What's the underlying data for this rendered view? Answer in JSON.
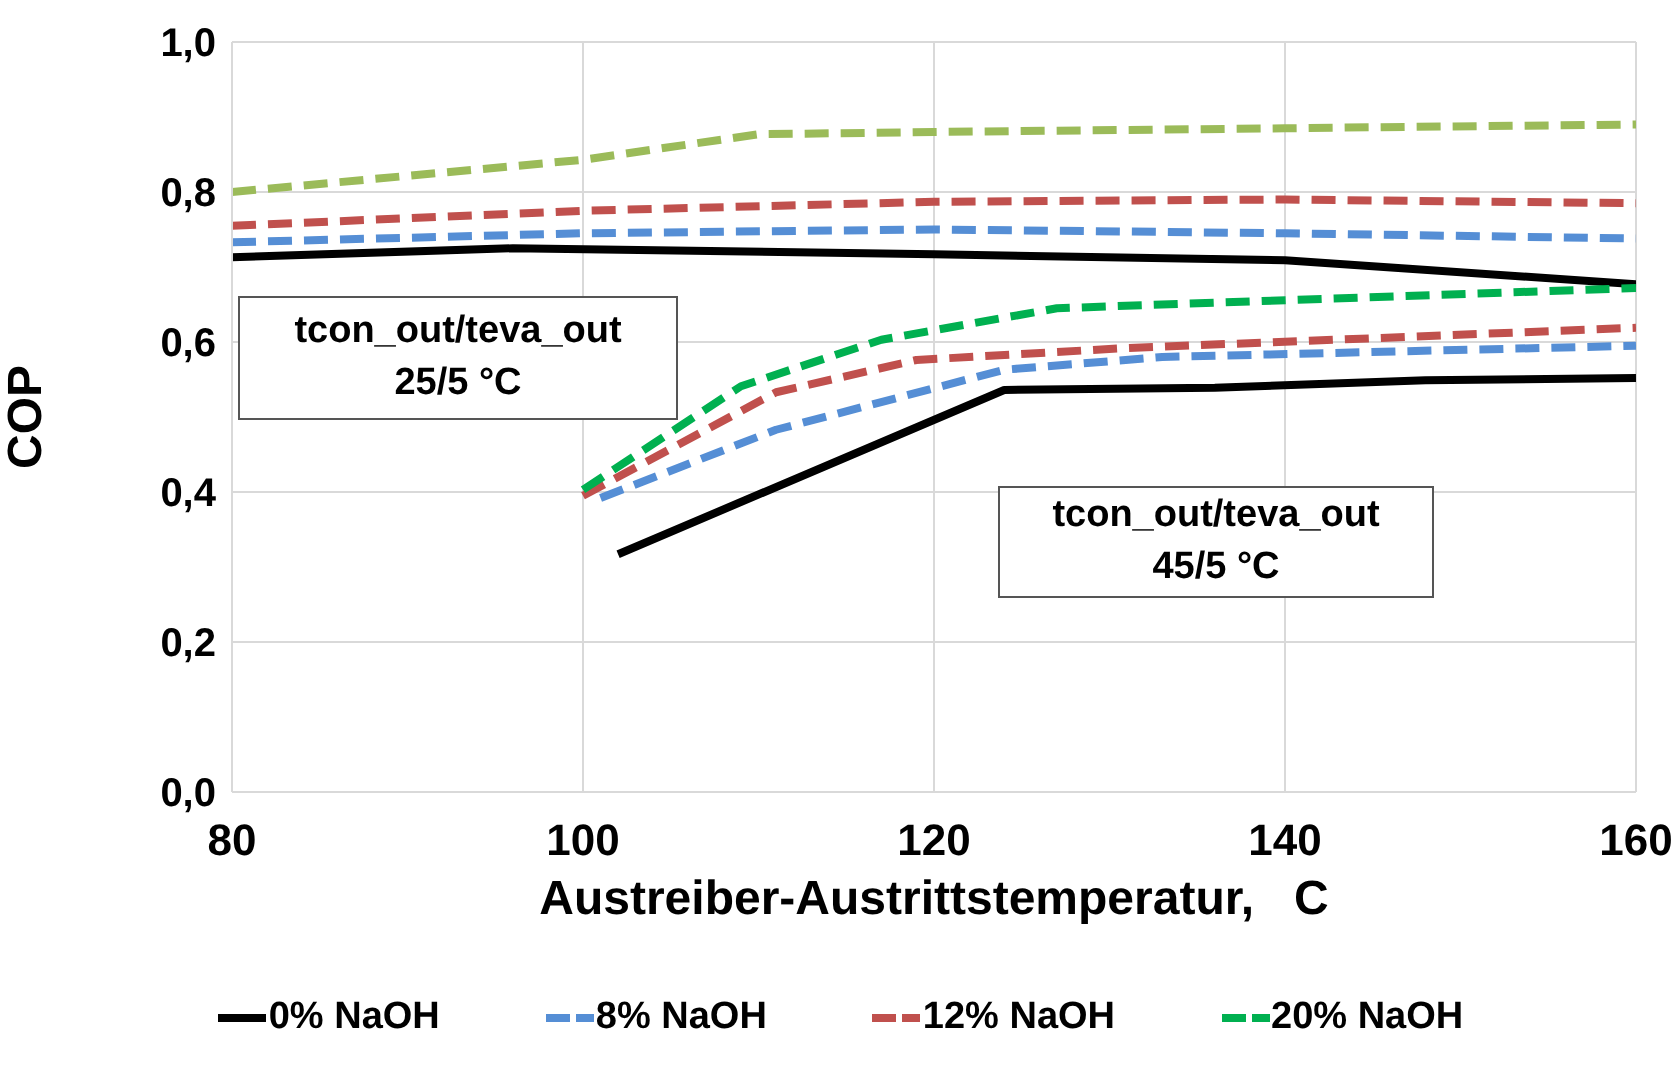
{
  "chart_data": {
    "type": "line",
    "xlabel": "Austreiber-Austrittstemperatur,   C",
    "ylabel": "COP",
    "xlim": [
      80,
      160
    ],
    "xticks": [
      80,
      100,
      120,
      140,
      160
    ],
    "ylim": [
      0,
      1
    ],
    "yticks": [
      {
        "value": 0,
        "label": "0,0"
      },
      {
        "value": 0.2,
        "label": "0,2"
      },
      {
        "value": 0.4,
        "label": "0,4"
      },
      {
        "value": 0.6,
        "label": "0,6"
      },
      {
        "value": 0.8,
        "label": "0,8"
      },
      {
        "value": 1,
        "label": "1,0"
      }
    ],
    "grid": true,
    "legend": "bottom",
    "marker": "none",
    "annotations": [
      "tcon_out/teva_out\n25/5 °C",
      "tcon_out/teva_out\n45/5 °C"
    ],
    "series": [
      {
        "color": "#000000",
        "line_style": "solid",
        "x": [
          80,
          96,
          120,
          140,
          160
        ],
        "values": [
          0.713,
          0.725,
          0.717,
          0.709,
          0.677
        ]
      },
      {
        "color": "#558ed5",
        "line_style": "dashed",
        "x": [
          80,
          100,
          120,
          140,
          160
        ],
        "values": [
          0.733,
          0.745,
          0.75,
          0.745,
          0.738
        ]
      },
      {
        "color": "#c0504d",
        "line_style": "dashed",
        "x": [
          80,
          100,
          120,
          140,
          160
        ],
        "values": [
          0.755,
          0.775,
          0.787,
          0.79,
          0.785
        ]
      },
      {
        "color": "#9bbb59",
        "line_style": "dashed",
        "x": [
          80,
          100,
          110,
          120,
          140,
          160
        ],
        "values": [
          0.8,
          0.843,
          0.877,
          0.88,
          0.885,
          0.89
        ]
      },
      {
        "name": "0% NaOH",
        "color": "#000000",
        "line_style": "solid",
        "x": [
          102,
          124,
          136,
          148,
          160
        ],
        "values": [
          0.317,
          0.536,
          0.539,
          0.549,
          0.552
        ]
      },
      {
        "name": "8% NaOH",
        "color": "#558ed5",
        "line_style": "dashed",
        "x": [
          101,
          111,
          124,
          133,
          160
        ],
        "values": [
          0.392,
          0.483,
          0.563,
          0.58,
          0.595
        ]
      },
      {
        "name": "12% NaOH",
        "color": "#c0504d",
        "line_style": "dashed",
        "x": [
          100,
          111,
          119,
          131,
          160
        ],
        "values": [
          0.395,
          0.533,
          0.576,
          0.592,
          0.619
        ]
      },
      {
        "name": "20% NaOH",
        "color": "#00b050",
        "line_style": "dashed",
        "x": [
          100,
          109,
          117,
          127,
          160
        ],
        "values": [
          0.403,
          0.541,
          0.603,
          0.645,
          0.672
        ]
      }
    ]
  }
}
